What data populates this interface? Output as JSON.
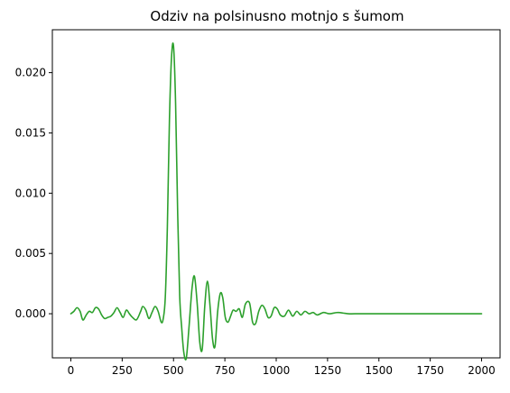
{
  "chart_data": {
    "type": "line",
    "title": "Odziv na polsinusno motnjo s šumom",
    "xlabel": "",
    "ylabel": "",
    "xlim": [
      -90,
      2090
    ],
    "ylim": [
      -0.00366,
      0.02356
    ],
    "grid": false,
    "legend": "none",
    "x_ticks": [
      0,
      250,
      500,
      750,
      1000,
      1250,
      1500,
      1750,
      2000
    ],
    "x_tick_labels": [
      "0",
      "250",
      "500",
      "750",
      "1000",
      "1250",
      "1500",
      "1750",
      "2000"
    ],
    "y_ticks": [
      0.0,
      0.005,
      0.01,
      0.015,
      0.02
    ],
    "y_tick_labels": [
      "0.000",
      "0.005",
      "0.010",
      "0.015",
      "0.020"
    ],
    "series": [
      {
        "color": "#2ca02c",
        "x": [
          0,
          15,
          30,
          45,
          55,
          62,
          75,
          90,
          105,
          120,
          135,
          150,
          165,
          180,
          195,
          210,
          225,
          240,
          255,
          270,
          285,
          300,
          320,
          340,
          350,
          365,
          380,
          395,
          410,
          425,
          440,
          450,
          460,
          470,
          480,
          490,
          500,
          510,
          520,
          530,
          540,
          550,
          562,
          575,
          590,
          602,
          615,
          628,
          640,
          652,
          665,
          678,
          690,
          702,
          715,
          728,
          740,
          752,
          765,
          778,
          790,
          805,
          820,
          835,
          850,
          870,
          885,
          900,
          915,
          930,
          945,
          960,
          975,
          990,
          1005,
          1020,
          1040,
          1060,
          1080,
          1100,
          1120,
          1140,
          1160,
          1180,
          1200,
          1230,
          1260,
          1300,
          1350,
          1400,
          1450,
          1500,
          1600,
          1700,
          1800,
          1900,
          2000
        ],
        "y": [
          0.0,
          0.0002,
          0.0005,
          0.0002,
          -0.0004,
          -0.0005,
          -0.0001,
          0.0002,
          0.0001,
          0.0005,
          0.0004,
          -0.0001,
          -0.0004,
          -0.0003,
          -0.0002,
          0.0001,
          0.0005,
          0.0001,
          -0.0003,
          0.0003,
          0.0,
          -0.0003,
          -0.0005,
          0.0002,
          0.0006,
          0.0003,
          -0.0004,
          0.0001,
          0.0006,
          0.0002,
          -0.0007,
          -0.0004,
          0.0014,
          0.0072,
          0.016,
          0.0212,
          0.0222,
          0.0175,
          0.0085,
          0.0015,
          -0.0012,
          -0.0032,
          -0.0037,
          -0.0012,
          0.0021,
          0.0031,
          0.0009,
          -0.0024,
          -0.0029,
          0.0006,
          0.0027,
          0.0006,
          -0.0021,
          -0.0027,
          0.0002,
          0.0017,
          0.0013,
          -0.0003,
          -0.0007,
          -0.0002,
          0.0003,
          0.0002,
          0.0004,
          -0.0003,
          0.0008,
          0.0009,
          -0.0007,
          -0.0008,
          0.0002,
          0.0007,
          0.0004,
          -0.0003,
          -0.0002,
          0.0005,
          0.0004,
          -0.0001,
          -0.0002,
          0.0003,
          -0.0002,
          0.0002,
          -0.0001,
          0.0002,
          0.0,
          0.0001,
          -0.0001,
          0.0001,
          0.0,
          0.0001,
          0.0,
          0.0,
          0.0,
          0.0,
          0.0,
          0.0,
          0.0,
          0.0,
          0.0
        ]
      }
    ]
  }
}
